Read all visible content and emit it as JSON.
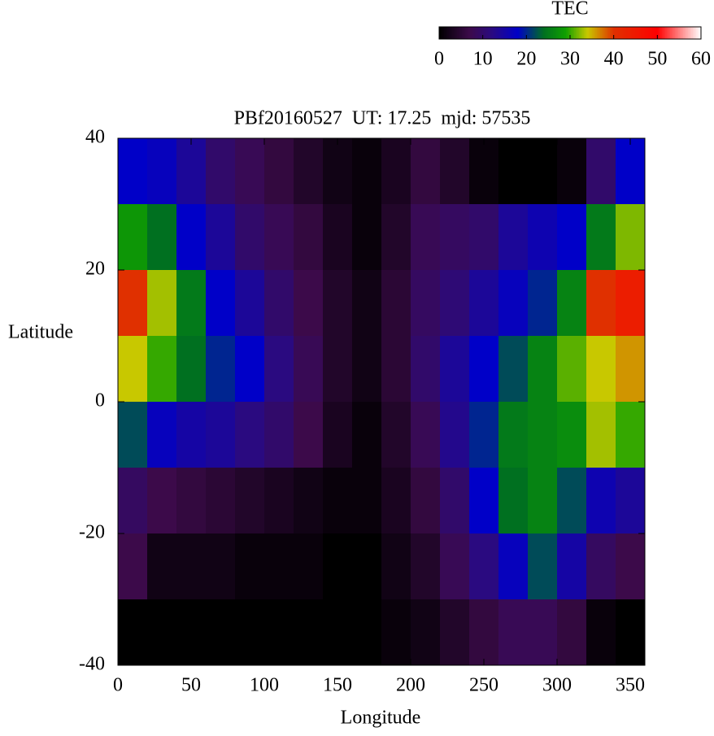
{
  "chart_data": {
    "type": "heatmap",
    "title": "PBf20160527  UT: 17.25  mjd: 57535",
    "x_label": "Longitude",
    "y_label": "Latitude",
    "xlim": [
      0,
      360
    ],
    "xticks": [
      0,
      50,
      100,
      150,
      200,
      250,
      300,
      350
    ],
    "ylim": [
      -40,
      40
    ],
    "yticks": [
      -40,
      -20,
      0,
      20,
      40
    ],
    "x": [
      10,
      30,
      50,
      70,
      90,
      110,
      130,
      150,
      170,
      190,
      210,
      230,
      250,
      270,
      290,
      310,
      330,
      350
    ],
    "y": [
      35,
      25,
      15,
      5,
      -5,
      -15,
      -25,
      -35
    ],
    "values": [
      [
        18,
        17,
        14,
        10,
        8,
        6,
        4,
        2,
        1,
        3,
        6,
        4,
        1,
        0,
        0,
        1,
        10,
        18
      ],
      [
        28,
        24,
        18,
        14,
        10,
        8,
        6,
        3,
        1,
        4,
        8,
        9,
        10,
        14,
        16,
        18,
        25,
        32
      ],
      [
        40,
        33,
        25,
        18,
        14,
        10,
        7,
        4,
        2,
        5,
        9,
        11,
        14,
        17,
        20,
        26,
        40,
        44
      ],
      [
        34,
        30,
        24,
        20,
        18,
        12,
        8,
        4,
        2,
        5,
        10,
        14,
        18,
        22,
        26,
        31,
        34,
        36
      ],
      [
        22,
        17,
        15,
        14,
        12,
        10,
        7,
        3,
        1,
        4,
        8,
        13,
        20,
        25,
        26,
        27,
        33,
        30
      ],
      [
        9,
        7,
        6,
        5,
        4,
        3,
        2,
        1,
        1,
        3,
        6,
        10,
        18,
        24,
        26,
        22,
        16,
        14
      ],
      [
        7,
        2,
        2,
        2,
        1,
        1,
        1,
        0,
        0,
        2,
        4,
        8,
        12,
        17,
        22,
        15,
        9,
        7
      ],
      [
        0,
        0,
        0,
        0,
        0,
        0,
        0,
        0,
        0,
        1,
        2,
        4,
        6,
        8,
        8,
        6,
        1,
        0
      ]
    ],
    "colorbar": {
      "label": "TEC",
      "lim": [
        0,
        60
      ],
      "ticks": [
        0,
        10,
        20,
        30,
        40,
        50,
        60
      ]
    },
    "colormap": [
      [
        0,
        "#000000"
      ],
      [
        7,
        "#3c0a4a"
      ],
      [
        12,
        "#2a0a80"
      ],
      [
        18,
        "#0000c8"
      ],
      [
        24,
        "#007020"
      ],
      [
        29,
        "#10a000"
      ],
      [
        34,
        "#c8c800"
      ],
      [
        40,
        "#e03000"
      ],
      [
        50,
        "#ff0000"
      ],
      [
        60,
        "#ffffff"
      ]
    ]
  }
}
